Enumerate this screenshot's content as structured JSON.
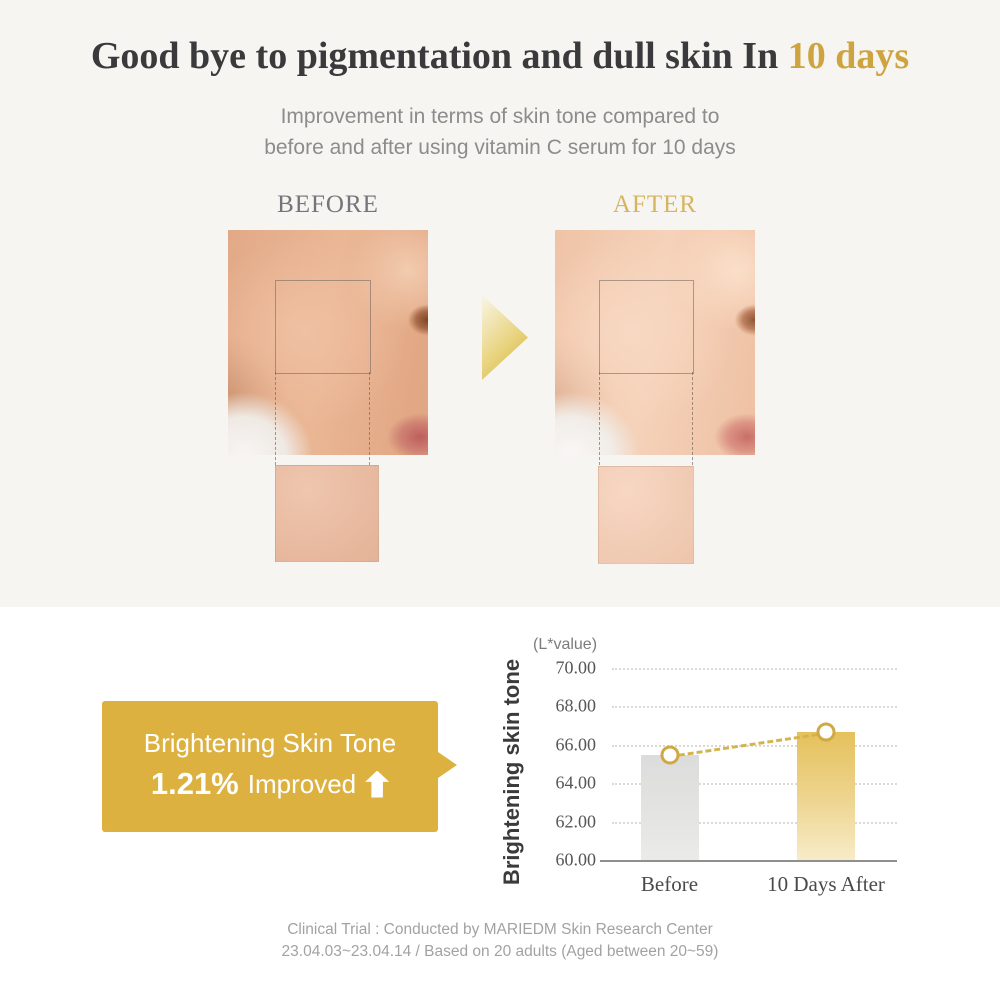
{
  "header": {
    "title_main": "Good bye to pigmentation and dull skin In",
    "title_highlight": "10 days",
    "subtitle_line1": "Improvement in terms of skin tone compared to",
    "subtitle_line2": "before and after using vitamin C serum for 10 days"
  },
  "comparison": {
    "before_label": "BEFORE",
    "after_label": "AFTER",
    "arrow_icon": "right-gradient-arrow",
    "zoom_patch_icon": "magnified-skin-patch"
  },
  "callout": {
    "line1": "Brightening Skin Tone",
    "percent": "1.21%",
    "suffix": "Improved",
    "icon": "up-arrow",
    "bg_color": "#dcb140"
  },
  "chart_data": {
    "type": "bar",
    "title": "",
    "unit_label": "(L*value)",
    "ylabel": "Brightening skin tone",
    "xlabel": "",
    "categories": [
      "Before",
      "10 Days After"
    ],
    "values": [
      65.45,
      66.66
    ],
    "ylim": [
      60,
      70
    ],
    "yticks": [
      60,
      62,
      64,
      66,
      68,
      70
    ],
    "ytick_format": "two-decimals",
    "grid": "dotted-horizontal",
    "legend": "none",
    "bar_colors": [
      "#dcdcdc",
      "#e6c25e"
    ],
    "marker_style": "white-circle-gold-outline",
    "trend_line_style": "dashed-gold",
    "annotation": "1.21% Improved"
  },
  "footer": {
    "line1": "Clinical Trial : Conducted by MARIEDM Skin Research Center",
    "line2": "23.04.03~23.04.14 / Based on 20 adults (Aged between 20~59)"
  },
  "colors": {
    "accent_gold": "#cda43f",
    "top_background": "#f6f5f2",
    "after_label_gold": "#d6b55e"
  }
}
